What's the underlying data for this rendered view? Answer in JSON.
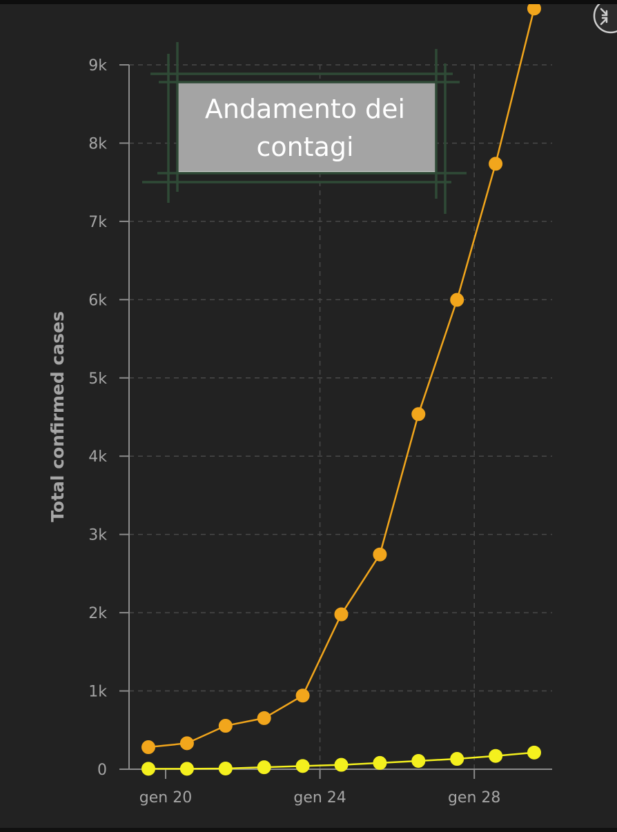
{
  "chart_data": {
    "type": "line",
    "title_lines": [
      "Andamento dei",
      "contagi"
    ],
    "xlabel": "",
    "ylabel": "Total confirmed cases",
    "x_ticks": [
      "gen 20",
      "gen 24",
      "gen 28"
    ],
    "y_ticks": [
      "0",
      "1k",
      "2k",
      "3k",
      "4k",
      "5k",
      "6k",
      "7k",
      "8k",
      "9k"
    ],
    "ylim": [
      0,
      9000
    ],
    "grid": true,
    "x": [
      "gen 20",
      "gen 21",
      "gen 22",
      "gen 23",
      "gen 24",
      "gen 25",
      "gen 26",
      "gen 27",
      "gen 28",
      "gen 29",
      "gen 30"
    ],
    "series": [
      {
        "color": "#f2a61c",
        "values": [
          282,
          332,
          555,
          653,
          941,
          1979,
          2744,
          4537,
          5997,
          7736,
          9720
        ]
      },
      {
        "color": "#f4f01e",
        "values": [
          6,
          6,
          9,
          25,
          41,
          56,
          80,
          106,
          132,
          170,
          213
        ]
      }
    ]
  },
  "controls": {
    "collapse_icon": "collapse-arrows-icon"
  }
}
